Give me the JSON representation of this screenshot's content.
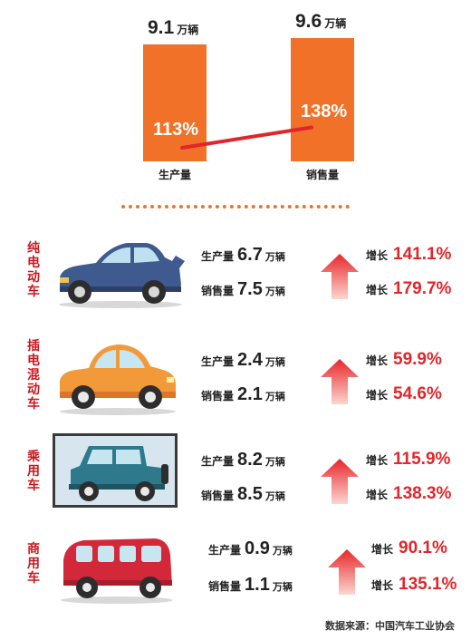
{
  "chart_data": {
    "type": "bar",
    "categories": [
      "生产量",
      "销售量"
    ],
    "values": [
      9.1,
      9.6
    ],
    "unit": "万辆",
    "growth": [
      "113%",
      "138%"
    ],
    "growth_values": [
      113,
      138
    ],
    "ylim": [
      0,
      10
    ],
    "colors": {
      "bar": "#f07127",
      "line": "#e0262a"
    }
  },
  "labels": {
    "production": "生产量",
    "sales": "销售量",
    "unit": "万辆",
    "growth": "增长"
  },
  "rows": [
    {
      "name": "纯电动车",
      "car_icon": "blue-sedan-icon",
      "production": "6.7",
      "sales": "7.5",
      "production_growth": "141.1%",
      "sales_growth": "179.7%"
    },
    {
      "name": "插电混动车",
      "car_icon": "orange-compact-car-icon",
      "production": "2.4",
      "sales": "2.1",
      "production_growth": "59.9%",
      "sales_growth": "54.6%"
    },
    {
      "name": "乘用车",
      "car_icon": "green-jeep-icon",
      "production": "8.2",
      "sales": "8.5",
      "production_growth": "115.9%",
      "sales_growth": "138.3%"
    },
    {
      "name": "商用车",
      "car_icon": "red-van-icon",
      "production": "0.9",
      "sales": "1.1",
      "production_growth": "90.1%",
      "sales_growth": "135.1%"
    }
  ],
  "source": "数据来源：中国汽车工业协会"
}
